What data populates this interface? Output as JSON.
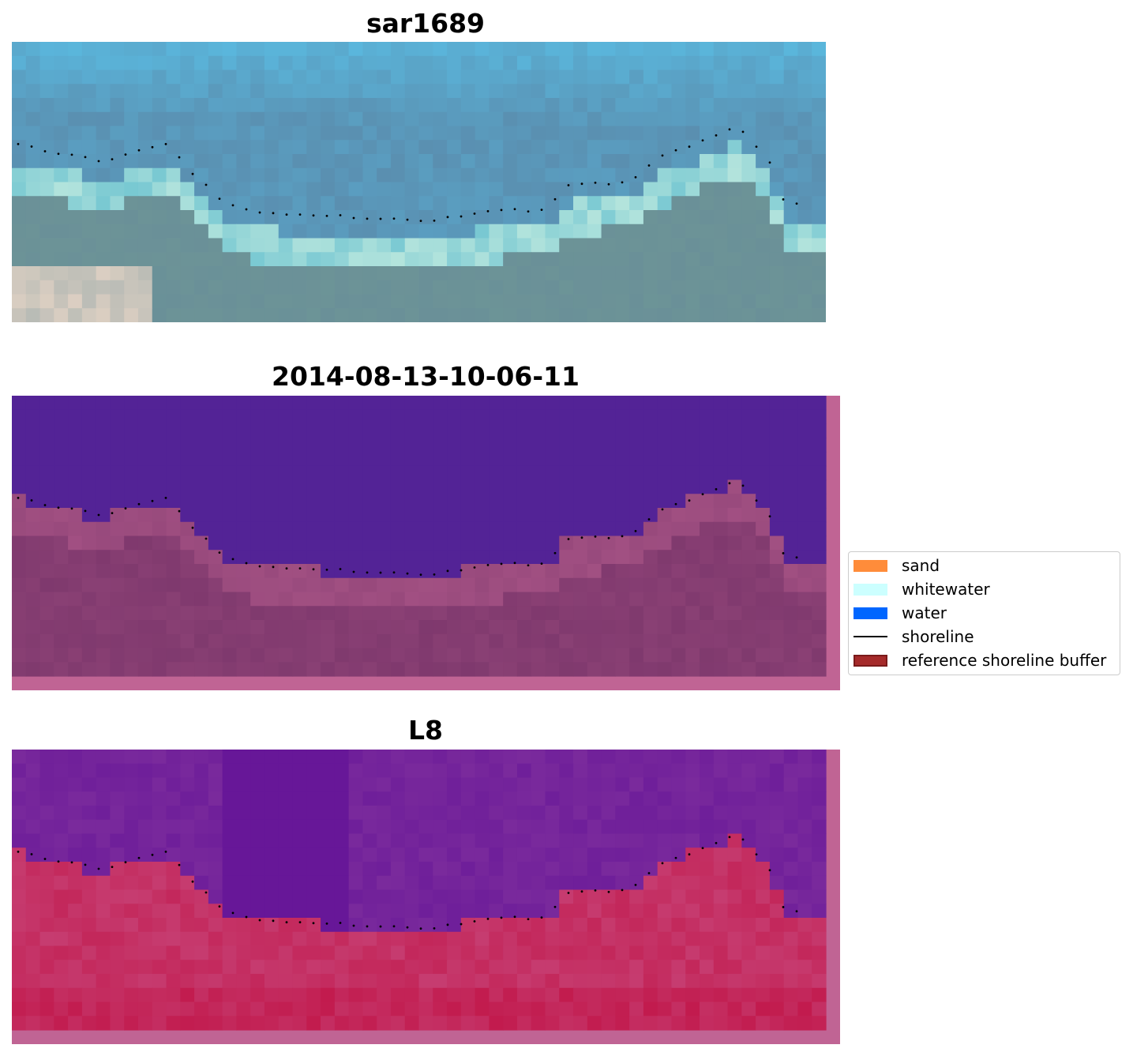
{
  "panels": [
    {
      "title": "sar1689"
    },
    {
      "title": "2014-08-13-10-06-11"
    },
    {
      "title": "L8"
    }
  ],
  "legend": {
    "items": [
      {
        "label": "sand",
        "kind": "patch",
        "color": "#ff8c3a",
        "edge": "#ff8c3a"
      },
      {
        "label": "whitewater",
        "kind": "patch",
        "color": "#ccffff",
        "edge": "#ccffff"
      },
      {
        "label": "water",
        "kind": "patch",
        "color": "#0066ff",
        "edge": "#0066ff"
      },
      {
        "label": "shoreline",
        "kind": "line",
        "color": "#000000"
      },
      {
        "label": "reference shoreline buffer",
        "kind": "patch",
        "color": "#a52a2a",
        "edge": "#7a1a1a"
      }
    ]
  },
  "colors": {
    "rgb_water": "#5a8fb0",
    "rgb_land": "#6a9098",
    "classified_water": "#532396",
    "classified_land": "#7c376c",
    "classified_border": "#c06494",
    "mndwi_water": "#7a2a9c",
    "mndwi_land": "#c63c70",
    "shoreline": "#000000"
  }
}
